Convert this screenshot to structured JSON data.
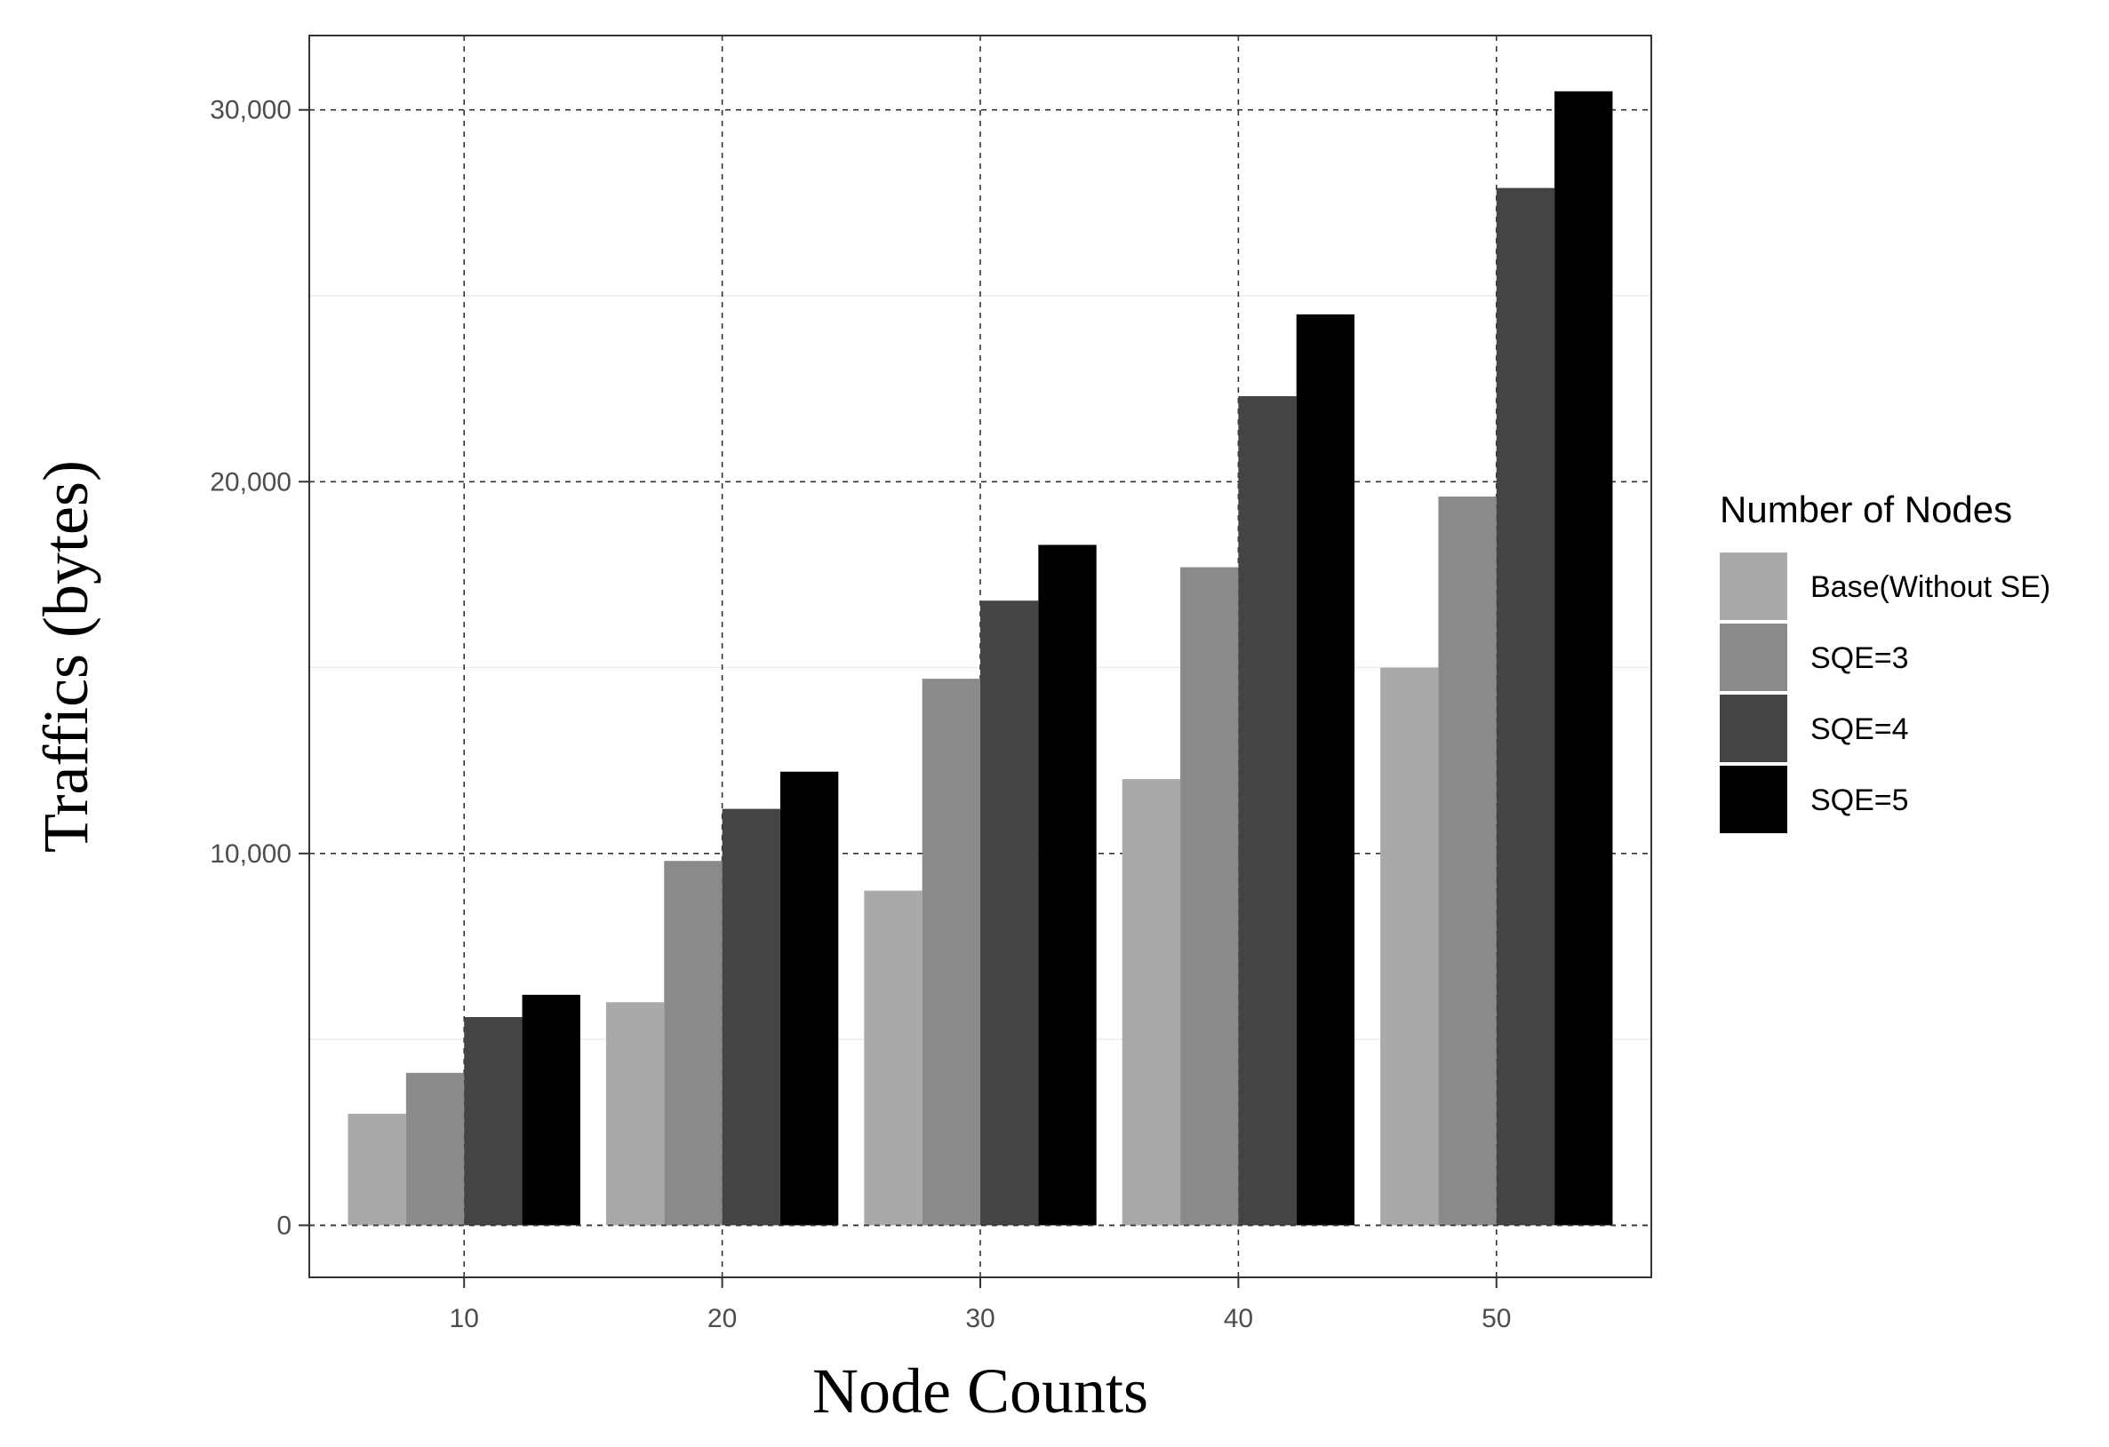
{
  "chart_data": {
    "type": "bar",
    "title": "",
    "xlabel": "Node Counts",
    "ylabel": "Traffics (bytes)",
    "categories": [
      "10",
      "20",
      "30",
      "40",
      "50"
    ],
    "ylim": [
      -1400,
      32000
    ],
    "yticks": [
      0,
      10000,
      20000,
      30000
    ],
    "ytick_labels": [
      "0",
      "10,000",
      "20,000",
      "30,000"
    ],
    "grid": true,
    "legend": {
      "title": "Number of Nodes",
      "position": "right"
    },
    "series": [
      {
        "name": "Base(Without SE)",
        "color": "#a9a9a9",
        "values": [
          3000,
          6000,
          9000,
          12000,
          15000
        ]
      },
      {
        "name": "SQE=3",
        "color": "#8a8a8a",
        "values": [
          4100,
          9800,
          14700,
          17700,
          19600
        ]
      },
      {
        "name": "SQE=4",
        "color": "#444444",
        "values": [
          5600,
          11200,
          16800,
          22300,
          27900
        ]
      },
      {
        "name": "SQE=5",
        "color": "#000000",
        "values": [
          6200,
          12200,
          18300,
          24500,
          30500
        ]
      }
    ]
  }
}
